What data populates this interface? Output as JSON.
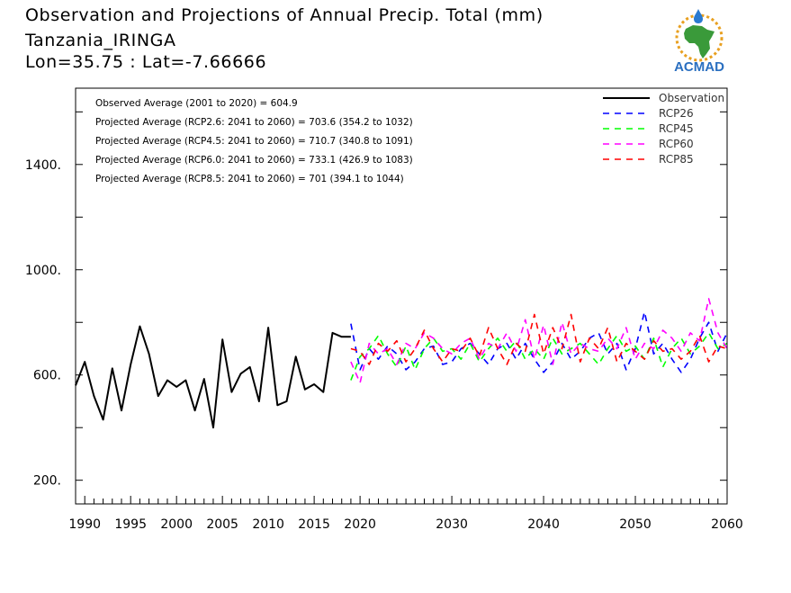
{
  "header": {
    "line1": "Observation and Projections of Annual Precip. Total (mm)",
    "line2": "Tanzania_IRINGA",
    "line3": "Lon=35.75 : Lat=-7.66666"
  },
  "logo": {
    "text": "ACMAD",
    "colors": {
      "africa": "#3a9a3a",
      "ring": "#e8a020",
      "drop": "#2a7ad0",
      "text": "#2a6fc0"
    }
  },
  "chart_data": {
    "type": "line",
    "title": "Observation and Projections of Annual Precip. Total (mm)",
    "xlim": [
      1989,
      2060
    ],
    "ylim": [
      110,
      1690
    ],
    "x_ticks": [
      1990,
      1995,
      2000,
      2005,
      2010,
      2015,
      2020,
      2030,
      2040,
      2050,
      2060
    ],
    "y_ticks": [
      200,
      600,
      1000,
      1400
    ],
    "y_tick_labels": [
      "200.",
      "600.",
      "1000.",
      "1400."
    ],
    "annotations": [
      "Observed Average (2001 to 2020) = 604.9",
      "Projected Average (RCP2.6: 2041 to 2060) = 703.6 (354.2 to 1032)",
      "Projected Average (RCP4.5: 2041 to 2060) = 710.7 (340.8 to 1091)",
      "Projected Average (RCP6.0: 2041 to 2060) = 733.1 (426.9 to 1083)",
      "Projected Average (RCP8.5: 2041 to 2060) = 701 (394.1 to 1044)"
    ],
    "legend_position": "top-right",
    "series": [
      {
        "name": "Observation",
        "color": "#000000",
        "dash": "solid",
        "x": [
          1989,
          1990,
          1991,
          1992,
          1993,
          1994,
          1995,
          1996,
          1997,
          1998,
          1999,
          2000,
          2001,
          2002,
          2003,
          2004,
          2005,
          2006,
          2007,
          2008,
          2009,
          2010,
          2011,
          2012,
          2013,
          2014,
          2015,
          2016,
          2017,
          2018,
          2019
        ],
        "values": [
          560,
          650,
          520,
          430,
          625,
          465,
          640,
          785,
          680,
          520,
          580,
          555,
          580,
          465,
          585,
          400,
          735,
          535,
          605,
          630,
          500,
          780,
          485,
          500,
          670,
          545,
          565,
          535,
          760,
          745,
          745
        ]
      },
      {
        "name": "RCP26",
        "color": "#0000ff",
        "dash": "dashed",
        "x": [
          2019,
          2020,
          2021,
          2022,
          2023,
          2024,
          2025,
          2026,
          2027,
          2028,
          2029,
          2030,
          2031,
          2032,
          2033,
          2034,
          2035,
          2036,
          2037,
          2038,
          2039,
          2040,
          2041,
          2042,
          2043,
          2044,
          2045,
          2046,
          2047,
          2048,
          2049,
          2050,
          2051,
          2052,
          2053,
          2054,
          2055,
          2056,
          2057,
          2058,
          2059,
          2060
        ],
        "values": [
          795,
          620,
          700,
          660,
          710,
          680,
          620,
          650,
          700,
          710,
          640,
          650,
          700,
          720,
          680,
          640,
          700,
          720,
          660,
          720,
          660,
          610,
          650,
          720,
          660,
          690,
          740,
          760,
          680,
          720,
          620,
          700,
          840,
          680,
          720,
          660,
          610,
          660,
          740,
          800,
          690,
          760
        ]
      },
      {
        "name": "RCP45",
        "color": "#00ff00",
        "dash": "dashed",
        "x": [
          2019,
          2020,
          2021,
          2022,
          2023,
          2024,
          2025,
          2026,
          2027,
          2028,
          2029,
          2030,
          2031,
          2032,
          2033,
          2034,
          2035,
          2036,
          2037,
          2038,
          2039,
          2040,
          2041,
          2042,
          2043,
          2044,
          2045,
          2046,
          2047,
          2048,
          2049,
          2050,
          2051,
          2052,
          2053,
          2054,
          2055,
          2056,
          2057,
          2058,
          2059,
          2060
        ],
        "values": [
          580,
          670,
          700,
          750,
          680,
          630,
          710,
          620,
          700,
          740,
          690,
          700,
          660,
          720,
          650,
          700,
          740,
          690,
          730,
          660,
          700,
          660,
          740,
          680,
          700,
          720,
          680,
          640,
          700,
          750,
          690,
          710,
          660,
          740,
          630,
          700,
          740,
          680,
          710,
          760,
          700,
          720
        ]
      },
      {
        "name": "RCP60",
        "color": "#ff00ff",
        "dash": "dashed",
        "x": [
          2019,
          2020,
          2021,
          2022,
          2023,
          2024,
          2025,
          2026,
          2027,
          2028,
          2029,
          2030,
          2031,
          2032,
          2033,
          2034,
          2035,
          2036,
          2037,
          2038,
          2039,
          2040,
          2041,
          2042,
          2043,
          2044,
          2045,
          2046,
          2047,
          2048,
          2049,
          2050,
          2051,
          2052,
          2053,
          2054,
          2055,
          2056,
          2057,
          2058,
          2059,
          2060
        ],
        "values": [
          650,
          570,
          720,
          680,
          700,
          640,
          720,
          700,
          760,
          740,
          700,
          680,
          720,
          740,
          660,
          720,
          700,
          760,
          690,
          810,
          660,
          790,
          640,
          800,
          680,
          720,
          700,
          690,
          740,
          700,
          780,
          660,
          720,
          700,
          770,
          740,
          690,
          760,
          730,
          890,
          760,
          700
        ]
      },
      {
        "name": "RCP85",
        "color": "#ff0000",
        "dash": "dashed",
        "x": [
          2019,
          2020,
          2021,
          2022,
          2023,
          2024,
          2025,
          2026,
          2027,
          2028,
          2029,
          2030,
          2031,
          2032,
          2033,
          2034,
          2035,
          2036,
          2037,
          2038,
          2039,
          2040,
          2041,
          2042,
          2043,
          2044,
          2045,
          2046,
          2047,
          2048,
          2049,
          2050,
          2051,
          2052,
          2053,
          2054,
          2055,
          2056,
          2057,
          2058,
          2059,
          2060
        ],
        "values": [
          700,
          690,
          640,
          720,
          690,
          730,
          650,
          700,
          770,
          700,
          650,
          700,
          690,
          740,
          670,
          780,
          700,
          640,
          720,
          690,
          830,
          680,
          780,
          700,
          830,
          650,
          740,
          700,
          780,
          650,
          720,
          690,
          660,
          730,
          690,
          700,
          660,
          690,
          750,
          650,
          710,
          700
        ]
      }
    ]
  }
}
